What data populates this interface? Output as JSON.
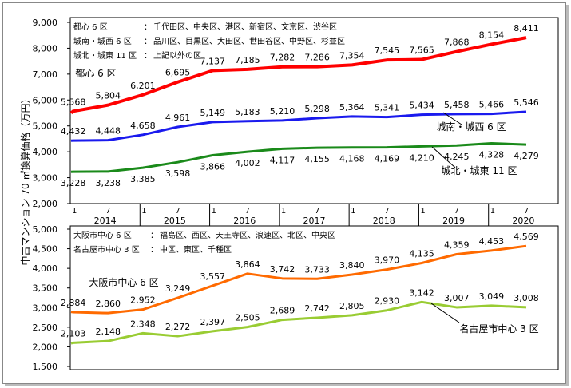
{
  "y_axis_label": "中古マンション 70 ㎡換算価格（万円）",
  "x_axis": {
    "years": [
      "2014",
      "2015",
      "2016",
      "2017",
      "2018",
      "2019",
      "2020"
    ],
    "month_ticks": [
      "1",
      "7"
    ]
  },
  "chart_data": [
    {
      "type": "line",
      "panel": "top",
      "ylim": [
        2000,
        9000
      ],
      "yticks": [
        "9,000",
        "8,000",
        "7,000",
        "6,000",
        "5,000",
        "4,000",
        "3,000",
        "2,000"
      ],
      "ytick_values": [
        9000,
        8000,
        7000,
        6000,
        5000,
        4000,
        3000,
        2000
      ],
      "legend_notes": [
        {
          "name": "都心 6 区",
          "sep": "：",
          "desc": "千代田区、中央区、港区、新宿区、文京区、渋谷区"
        },
        {
          "name": "城南・城西 6 区",
          "sep": "：",
          "desc": "品川区、目黒区、大田区、世田谷区、中野区、杉並区"
        },
        {
          "name": "城北・城東 11 区",
          "sep": "：",
          "desc": "上記以外の区"
        }
      ],
      "x": [
        "2014-01",
        "2014-07",
        "2015-01",
        "2015-07",
        "2016-01",
        "2016-07",
        "2017-01",
        "2017-07",
        "2018-01",
        "2018-07",
        "2019-01",
        "2019-07",
        "2020-01",
        "2020-07"
      ],
      "series": [
        {
          "name": "都心 6 区",
          "color": "#ff0000",
          "label_pos": "above",
          "values": [
            5568,
            5804,
            6201,
            6695,
            7137,
            7185,
            7282,
            7286,
            7354,
            7545,
            7565,
            7868,
            8154,
            8411
          ],
          "labels": [
            "5,568",
            "5,804",
            "6,201",
            "6,695",
            "7,137",
            "7,185",
            "7,282",
            "7,286",
            "7,354",
            "7,545",
            "7,565",
            "7,868",
            "8,154",
            "8,411"
          ]
        },
        {
          "name": "城南・城西 6 区",
          "color": "#1a1aee",
          "label_pos": "above",
          "values": [
            4432,
            4448,
            4658,
            4961,
            5149,
            5183,
            5210,
            5298,
            5364,
            5341,
            5434,
            5458,
            5466,
            5546
          ],
          "labels": [
            "4,432",
            "4,448",
            "4,658",
            "4,961",
            "5,149",
            "5,183",
            "5,210",
            "5,298",
            "5,364",
            "5,341",
            "5,434",
            "5,458",
            "5,466",
            "5,546"
          ]
        },
        {
          "name": "城北・城東 11 区",
          "color": "#1a8a1a",
          "label_pos": "below",
          "values": [
            3228,
            3238,
            3385,
            3598,
            3866,
            4002,
            4117,
            4155,
            4168,
            4169,
            4210,
            4245,
            4328,
            4279
          ],
          "labels": [
            "3,228",
            "3,238",
            "3,385",
            "3,598",
            "3,866",
            "4,002",
            "4,117",
            "4,155",
            "4,168",
            "4,169",
            "4,210",
            "4,245",
            "4,328",
            "4,279"
          ]
        }
      ]
    },
    {
      "type": "line",
      "panel": "bottom",
      "ylim": [
        1500,
        5000
      ],
      "yticks": [
        "5,000",
        "4,500",
        "4,000",
        "3,500",
        "3,000",
        "2,500",
        "2,000",
        "1,500"
      ],
      "ytick_values": [
        5000,
        4500,
        4000,
        3500,
        3000,
        2500,
        2000,
        1500
      ],
      "legend_notes": [
        {
          "name": "大阪市中心 6 区",
          "sep": "：",
          "desc": "福島区、西区、天王寺区、浪速区、北区、中央区"
        },
        {
          "name": "名古屋市中心 3 区",
          "sep": "：",
          "desc": "中区、東区、千種区"
        }
      ],
      "x": [
        "2014-01",
        "2014-07",
        "2015-01",
        "2015-07",
        "2016-01",
        "2016-07",
        "2017-01",
        "2017-07",
        "2018-01",
        "2018-07",
        "2019-01",
        "2019-07",
        "2020-01",
        "2020-07"
      ],
      "series": [
        {
          "name": "大阪市中心 6 区",
          "color": "#ff6a00",
          "label_pos": "above",
          "values": [
            2884,
            2860,
            2952,
            3249,
            3557,
            3864,
            3742,
            3733,
            3840,
            3970,
            4135,
            4359,
            4453,
            4569
          ],
          "labels": [
            "2,884",
            "2,860",
            "2,952",
            "3,249",
            "3,557",
            "3,864",
            "3,742",
            "3,733",
            "3,840",
            "3,970",
            "4,135",
            "4,359",
            "4,453",
            "4,569"
          ]
        },
        {
          "name": "名古屋市中心 3 区",
          "color": "#99cc33",
          "label_pos": "above",
          "values": [
            2103,
            2148,
            2348,
            2272,
            2397,
            2505,
            2689,
            2742,
            2805,
            2930,
            3142,
            3007,
            3049,
            3008
          ],
          "labels": [
            "2,103",
            "2,148",
            "2,348",
            "2,272",
            "2,397",
            "2,505",
            "2,689",
            "2,742",
            "2,805",
            "2,930",
            "3,142",
            "3,007",
            "3,049",
            "3,008"
          ]
        }
      ]
    }
  ]
}
